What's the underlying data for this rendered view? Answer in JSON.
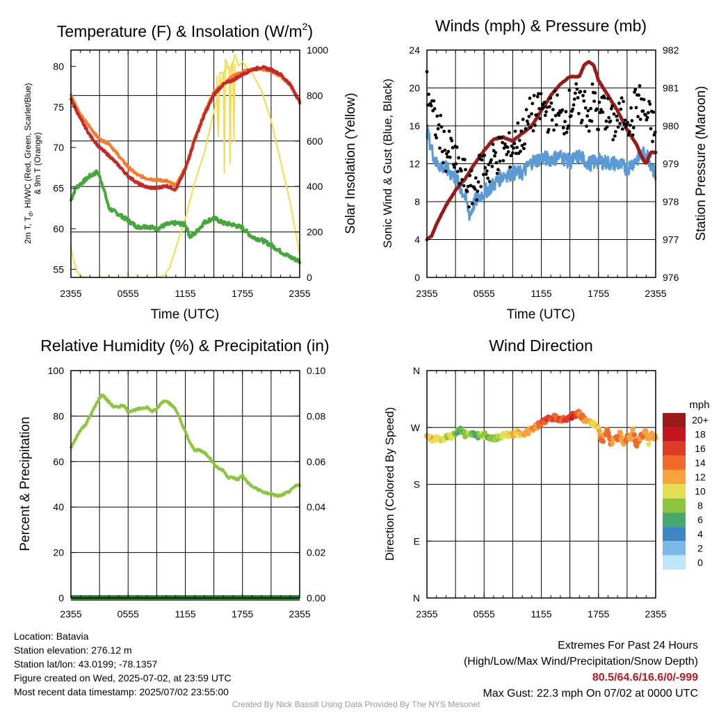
{
  "chart_data": [
    {
      "id": "temperature",
      "type": "line",
      "title": "Temperature (F) & Insolation (W/m",
      "title_superscript": "2",
      "title_close": ")",
      "xlabel": "Time (UTC)",
      "ylabel_lines": [
        "2m T, T",
        "d",
        ", HI/WC (Red, Green, Scarlet/Blue)",
        "& 9m T (Orange)"
      ],
      "ylabel_right": "Solar Insolation (Yellow)",
      "x_ticks": [
        "2355",
        "0555",
        "1155",
        "1755",
        "2355"
      ],
      "ylim": [
        54,
        82
      ],
      "y_ticks": [
        "55",
        "60",
        "65",
        "70",
        "75",
        "80"
      ],
      "y_right_lim": [
        0,
        1000
      ],
      "y_right_ticks": [
        "0",
        "200",
        "400",
        "600",
        "800",
        "1000"
      ],
      "x_hours": [
        0,
        24
      ],
      "colors": {
        "temp": "#c62828",
        "dewpoint": "#43a839",
        "temp9m": "#f57c2b",
        "solar": "#f7dc4a"
      },
      "series": [
        {
          "name": "2m T",
          "color_key": "temp",
          "x": [
            0,
            1,
            2,
            3,
            4,
            5,
            6,
            7,
            8,
            9,
            10,
            11,
            12,
            13,
            14,
            15,
            16,
            17,
            18,
            19,
            20,
            21,
            22,
            23,
            24
          ],
          "values": [
            76,
            73.5,
            71.5,
            70,
            69,
            67.8,
            66.5,
            65.6,
            65.1,
            65.0,
            65.3,
            64.8,
            67.3,
            71.0,
            74.0,
            76.5,
            77.8,
            78.3,
            79.0,
            79.6,
            79.9,
            79.6,
            79.0,
            77.8,
            75.6
          ]
        },
        {
          "name": "9m T",
          "color_key": "temp9m",
          "x": [
            0,
            1,
            2,
            3,
            4,
            5,
            6,
            7,
            8,
            9,
            10,
            11,
            12,
            13,
            14,
            15,
            16,
            17,
            18,
            19,
            20,
            21,
            22,
            23,
            24
          ],
          "values": [
            76.5,
            74,
            72.5,
            71,
            70.5,
            69,
            67.6,
            66.6,
            66.2,
            66.0,
            65.9,
            65.3,
            67.5,
            71.2,
            74.3,
            76.8,
            77.8,
            78.8,
            79.3,
            79.6,
            79.7,
            79.4,
            78.8,
            77.7,
            75.7
          ]
        },
        {
          "name": "T_d",
          "color_key": "dewpoint",
          "x": [
            0,
            0.5,
            1,
            2,
            2.8,
            3.3,
            4,
            5,
            6,
            7,
            8,
            9,
            10,
            11,
            12,
            12.5,
            13,
            14,
            15,
            16,
            17,
            18,
            19,
            20,
            21,
            22,
            23,
            24
          ],
          "values": [
            63.5,
            65,
            65.5,
            66.5,
            67.0,
            65.5,
            62.5,
            61.8,
            61,
            60.2,
            60.3,
            60.0,
            60.5,
            60.7,
            60.5,
            59.0,
            59.4,
            60.8,
            61.3,
            60.7,
            60.5,
            60.1,
            59.0,
            58.6,
            58.0,
            57.2,
            56.5,
            56.0
          ]
        },
        {
          "name": "Solar",
          "color_key": "solar",
          "axis": "right",
          "x": [
            0,
            0.2,
            0.6,
            1,
            2,
            4,
            6,
            8,
            9,
            9.8,
            10.3,
            10.8,
            11.3,
            11.8,
            12.2,
            13,
            14,
            15,
            15.8,
            16.3,
            16.8,
            17.2,
            17.6,
            18,
            18.5,
            19,
            20,
            21,
            22,
            23,
            24
          ],
          "values": [
            140,
            90,
            30,
            5,
            0,
            0,
            0,
            0,
            0,
            10,
            40,
            100,
            170,
            230,
            290,
            420,
            550,
            730,
            870,
            930,
            900,
            980,
            930,
            950,
            920,
            900,
            820,
            690,
            510,
            330,
            100
          ]
        },
        {
          "name": "Solar dips",
          "color_key": "solar",
          "axis": "right",
          "x": [
            15.3,
            15.45,
            15.6,
            16.0,
            16.1,
            16.2,
            16.6,
            16.7,
            16.8,
            17.0,
            17.1,
            17.2
          ],
          "values": [
            890,
            620,
            900,
            900,
            460,
            960,
            920,
            500,
            930,
            950,
            600,
            940
          ]
        }
      ]
    },
    {
      "id": "winds",
      "type": "line",
      "title": "Winds (mph) & Pressure (mb)",
      "xlabel": "Time (UTC)",
      "ylabel": "Sonic Wind & Gust (Blue, Black)",
      "ylabel_right": "Station Pressure (Maroon)",
      "x_ticks": [
        "2355",
        "0555",
        "1155",
        "1755",
        "2355"
      ],
      "ylim": [
        0,
        24
      ],
      "y_ticks": [
        "0",
        "4",
        "8",
        "12",
        "16",
        "20",
        "24"
      ],
      "y_right_lim": [
        976,
        982
      ],
      "y_right_ticks": [
        "976",
        "977",
        "978",
        "979",
        "980",
        "981",
        "982"
      ],
      "x_hours": [
        0,
        24
      ],
      "colors": {
        "wind": "#5b9bd5",
        "gust": "#000000",
        "pressure": "#9b1b1b"
      },
      "series": [
        {
          "name": "Sonic Wind",
          "color_key": "wind",
          "x": [
            0,
            0.5,
            1,
            2,
            3,
            4,
            4.5,
            5,
            6,
            7,
            8,
            9,
            10,
            11,
            12,
            13,
            14,
            15,
            16,
            17,
            18,
            19,
            20,
            21,
            22,
            23,
            24
          ],
          "values": [
            15.5,
            13.5,
            12.0,
            11.5,
            10.5,
            8.5,
            6.5,
            8.0,
            9.0,
            9.8,
            10.8,
            11.0,
            11.0,
            12.2,
            12.6,
            12.5,
            12.8,
            12.2,
            12.8,
            12.0,
            12.3,
            12.1,
            12.0,
            11.5,
            12.5,
            13.2,
            10.8
          ]
        },
        {
          "name": "Gust",
          "color_key": "gust",
          "x": [
            0,
            0.3,
            0.6,
            1,
            1.5,
            2,
            2.5,
            3,
            3.5,
            4,
            4.5,
            5,
            5.5,
            6,
            6.5,
            7,
            7.5,
            8,
            8.5,
            9,
            9.5,
            10,
            10.5,
            11,
            11.5,
            12,
            12.5,
            13,
            13.5,
            14,
            14.5,
            15,
            15.5,
            16,
            16.5,
            17,
            17.5,
            18,
            18.5,
            19,
            19.5,
            20,
            20.5,
            21,
            21.5,
            22,
            22.5,
            23,
            23.5,
            24
          ],
          "values": [
            20,
            19,
            17,
            16,
            15,
            13,
            13.5,
            12,
            11,
            10.5,
            9,
            9.5,
            11,
            12,
            11.5,
            12.5,
            13,
            13.5,
            13,
            14,
            14.5,
            15,
            16,
            17.5,
            17,
            18,
            17.5,
            17,
            18,
            16.5,
            17,
            18,
            19,
            17.5,
            18.5,
            17,
            19,
            16.5,
            18,
            17,
            16,
            16.5,
            17,
            17.5,
            16,
            19,
            18,
            17,
            16.5,
            15
          ]
        },
        {
          "name": "Station Pressure",
          "color_key": "pressure",
          "axis": "right",
          "x": [
            0,
            0.5,
            1,
            2,
            3,
            4,
            5,
            6,
            7,
            8,
            9,
            10,
            11,
            12,
            13,
            14,
            15,
            16,
            16.5,
            17,
            17.5,
            18,
            19,
            20,
            21,
            22,
            22.5,
            23,
            23.5,
            24
          ],
          "values": [
            977.0,
            977.1,
            977.4,
            977.9,
            978.3,
            978.6,
            979.0,
            979.35,
            979.65,
            979.7,
            979.6,
            979.8,
            980.0,
            980.4,
            980.8,
            981.1,
            981.3,
            981.3,
            981.6,
            981.7,
            981.6,
            981.2,
            980.8,
            980.4,
            979.9,
            979.5,
            979.2,
            979.0,
            979.3,
            979.3
          ]
        }
      ]
    },
    {
      "id": "humidity",
      "type": "line",
      "title": "Relative Humidity (%) & Precipitation (in)",
      "ylabel": "Percent & Precipitation",
      "x_ticks": [
        "2355",
        "0555",
        "1155",
        "1755",
        "2355"
      ],
      "ylim": [
        0,
        100
      ],
      "y_ticks": [
        "0",
        "20",
        "40",
        "60",
        "80",
        "100"
      ],
      "y_right_lim": [
        0,
        0.1
      ],
      "y_right_ticks": [
        "0.00",
        "0.02",
        "0.04",
        "0.06",
        "0.08",
        "0.10"
      ],
      "x_hours": [
        0,
        24
      ],
      "colors": {
        "rh": "#8cc63f",
        "precip": "#2e7d32"
      },
      "series": [
        {
          "name": "RH",
          "color_key": "rh",
          "x": [
            0,
            0.5,
            1,
            1.5,
            2,
            2.5,
            3,
            3.3,
            3.8,
            4.5,
            5,
            5.5,
            6,
            7,
            8,
            8.5,
            9,
            9.5,
            10,
            10.5,
            11,
            11.5,
            12,
            12.5,
            13,
            13.5,
            14,
            14.5,
            15,
            15.5,
            16,
            16.5,
            17,
            17.5,
            18,
            18.5,
            19,
            19.5,
            20,
            20.5,
            21,
            21.5,
            22,
            22.5,
            23,
            23.5,
            24
          ],
          "values": [
            66,
            70,
            74,
            76,
            80,
            84,
            88,
            89.5,
            87,
            84,
            84,
            85,
            82,
            83,
            84,
            82,
            83,
            86,
            87,
            85,
            83,
            78,
            73,
            68,
            65,
            65,
            64,
            62,
            59,
            57,
            56,
            53,
            53,
            52,
            54,
            51,
            49,
            48,
            47,
            46,
            46,
            45,
            45,
            46,
            47,
            49,
            50
          ]
        },
        {
          "name": "Precipitation",
          "color_key": "precip",
          "axis": "right",
          "x": [
            0,
            24
          ],
          "values": [
            0,
            0
          ]
        }
      ]
    },
    {
      "id": "direction",
      "type": "scatter",
      "title": "Wind Direction",
      "ylabel": "Direction (Colored By Speed)",
      "x_ticks": [
        "2355",
        "0555",
        "1155",
        "1755",
        "2355"
      ],
      "y_ticks": [
        "N",
        "E",
        "S",
        "W",
        "N"
      ],
      "ylim": [
        0,
        360
      ],
      "x_hours": [
        0,
        24
      ],
      "x": [
        0,
        0.5,
        1,
        1.5,
        2,
        2.5,
        3,
        3.5,
        4,
        4.5,
        5,
        5.5,
        6,
        6.5,
        7,
        7.5,
        8,
        8.5,
        9,
        9.5,
        10,
        10.5,
        11,
        11.5,
        12,
        12.5,
        13,
        13.5,
        14,
        14.5,
        15,
        15.5,
        16,
        16.5,
        17,
        17.5,
        18,
        18.3,
        18.6,
        19,
        19.3,
        19.6,
        20,
        20.3,
        20.6,
        21,
        21.3,
        21.6,
        22,
        22.3,
        22.6,
        23,
        23.3,
        23.6,
        24
      ],
      "values": [
        255,
        252,
        253,
        250,
        254,
        255,
        262,
        268,
        258,
        262,
        260,
        256,
        258,
        254,
        252,
        256,
        258,
        260,
        258,
        262,
        258,
        262,
        268,
        272,
        278,
        282,
        284,
        286,
        282,
        284,
        286,
        290,
        292,
        282,
        278,
        276,
        268,
        246,
        256,
        266,
        244,
        254,
        250,
        262,
        244,
        256,
        248,
        264,
        242,
        252,
        258,
        262,
        246,
        258,
        255
      ],
      "speeds": [
        12,
        11,
        10,
        11,
        9,
        10,
        8,
        6,
        8,
        9,
        7,
        8,
        9,
        7,
        8,
        9,
        10,
        10,
        11,
        10,
        11,
        12,
        13,
        13,
        14,
        15,
        15,
        14,
        15,
        16,
        16,
        17,
        14,
        13,
        12,
        10,
        11,
        14,
        12,
        13,
        15,
        12,
        14,
        13,
        11,
        14,
        12,
        13,
        15,
        12,
        14,
        12,
        11,
        13,
        12
      ],
      "colorbar": {
        "title": "mph",
        "labels": [
          "20+",
          "18",
          "16",
          "14",
          "12",
          "10",
          "8",
          "6",
          "4",
          "2",
          "0"
        ],
        "colors": [
          "#9b1b1b",
          "#c4161c",
          "#e03a2b",
          "#ef6a2a",
          "#f7a23c",
          "#e5df52",
          "#8cc63f",
          "#46a86c",
          "#3f86c4",
          "#7cb9e8",
          "#bfe6fb"
        ]
      }
    }
  ],
  "footer": {
    "location": "Location: Batavia",
    "elevation": "Station elevation: 276.12 m",
    "latlon": "Station lat/lon: 43.0199; -78.1357",
    "created": "Figure created on Wed, 2025-07-02, at 23:59 UTC",
    "recent": "Most recent data timestamp: 2025/07/02 23:55:00",
    "extremes_title": "Extremes For Past 24 Hours",
    "extremes_subtitle": "(High/Low/Max Wind/Precipitation/Snow Depth)",
    "extremes_values": "80.5/64.6/16.6/0/-999",
    "max_gust": "Max Gust: 22.3 mph On 07/02 at 0000 UTC",
    "credit": "Created By Nick Bassill Using Data Provided By The NYS Mesonet"
  }
}
